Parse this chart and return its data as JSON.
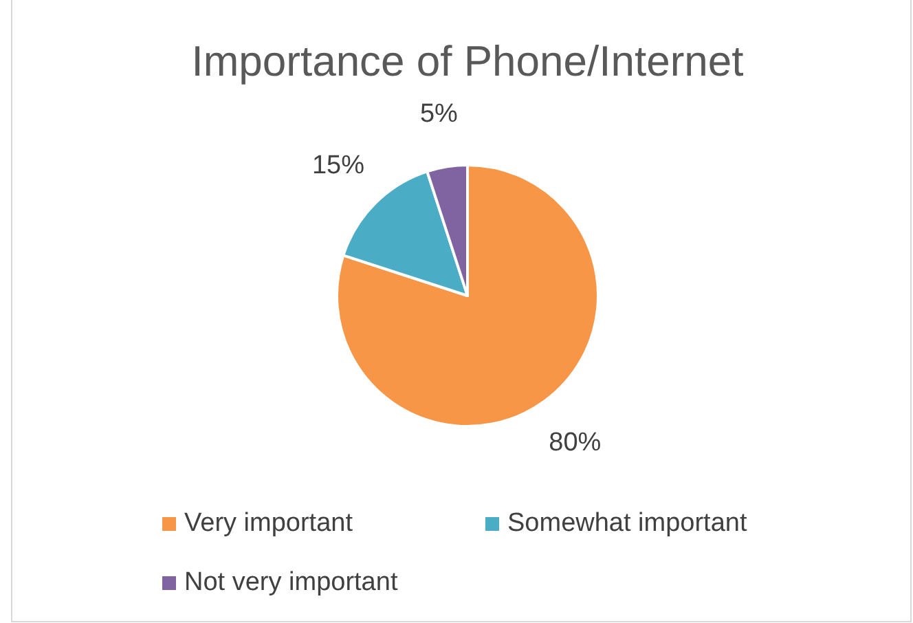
{
  "chart_data": {
    "type": "pie",
    "title": "Importance of Phone/Internet",
    "categories": [
      "Very important",
      "Somewhat important",
      "Not very important"
    ],
    "values": [
      80,
      15,
      5
    ],
    "colors": [
      "#f79646",
      "#4bacc6",
      "#8064a2"
    ],
    "value_labels": [
      "80%",
      "15%",
      "5%"
    ],
    "legend": "bottom"
  }
}
